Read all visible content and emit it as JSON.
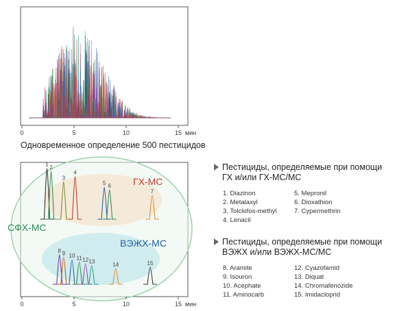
{
  "top_chart": {
    "x_ticks": [
      "0",
      "5",
      "10",
      "15"
    ],
    "x_unit": "мин",
    "caption": "Одновременное определение 500 пестицидов"
  },
  "bottom_chart": {
    "x_ticks": [
      "0",
      "5",
      "10",
      "15"
    ],
    "x_unit": "мин",
    "regions": {
      "gc": {
        "label": "ГХ-МС",
        "color": "#c0392b"
      },
      "sfc": {
        "label": "СФХ-МС",
        "color": "#2e8b57"
      },
      "lc": {
        "label": "ВЭЖХ-МС",
        "color": "#1f5fa8"
      }
    },
    "peaks": [
      {
        "label": "1",
        "time": 2.4,
        "height": 0.95,
        "color": "#333333"
      },
      {
        "label": "2",
        "time": 2.8,
        "height": 0.9,
        "color": "#2b8a3e"
      },
      {
        "label": "3",
        "time": 4.0,
        "height": 0.7,
        "color": "#7a8a2a"
      },
      {
        "label": "4",
        "time": 5.1,
        "height": 0.8,
        "color": "#c0392b"
      },
      {
        "label": "5",
        "time": 7.9,
        "height": 0.6,
        "color": "#1f5fa8"
      },
      {
        "label": "6",
        "time": 8.4,
        "height": 0.55,
        "color": "#2e8b57"
      },
      {
        "label": "7",
        "time": 12.5,
        "height": 0.45,
        "color": "#e08a2a"
      },
      {
        "label": "8",
        "time": 3.6,
        "height": 0.6,
        "color": "#6a3d9a"
      },
      {
        "label": "9",
        "time": 4.0,
        "height": 0.55,
        "color": "#d35400"
      },
      {
        "label": "10",
        "time": 4.8,
        "height": 0.5,
        "color": "#1f5fa8"
      },
      {
        "label": "11",
        "time": 5.5,
        "height": 0.45,
        "color": "#2b8a3e"
      },
      {
        "label": "12",
        "time": 6.1,
        "height": 0.42,
        "color": "#8e44ad"
      },
      {
        "label": "13",
        "time": 6.7,
        "height": 0.38,
        "color": "#16a085"
      },
      {
        "label": "14",
        "time": 9.0,
        "height": 0.32,
        "color": "#e08a2a"
      },
      {
        "label": "15",
        "time": 12.3,
        "height": 0.35,
        "color": "#333333"
      }
    ]
  },
  "group_gc": {
    "title_line1": "Пестициды, определяемые при помощи",
    "title_line2": "ГХ и/или ГХ-МС/МС",
    "col1": [
      "1. Diazinon",
      "2. Metalaxyl",
      "3. Tolclofos-methyl",
      "4. Lenacil"
    ],
    "col2": [
      "5. Mepronil",
      "6. Dioxathion",
      "7. Cypermethrin"
    ]
  },
  "group_lc": {
    "title_line1": "Пестициды, определяемые при помощи",
    "title_line2": "ВЭЖХ и/или ВЭЖХ-МС/МС",
    "col1": [
      "8. Aramite",
      "9. Isouron",
      "10. Acephate",
      "11. Aminocarb"
    ],
    "col2": [
      "12. Cyazofamid",
      "13. Diquat",
      "14. Chromafenozide",
      "15. Imidacloprid"
    ]
  }
}
